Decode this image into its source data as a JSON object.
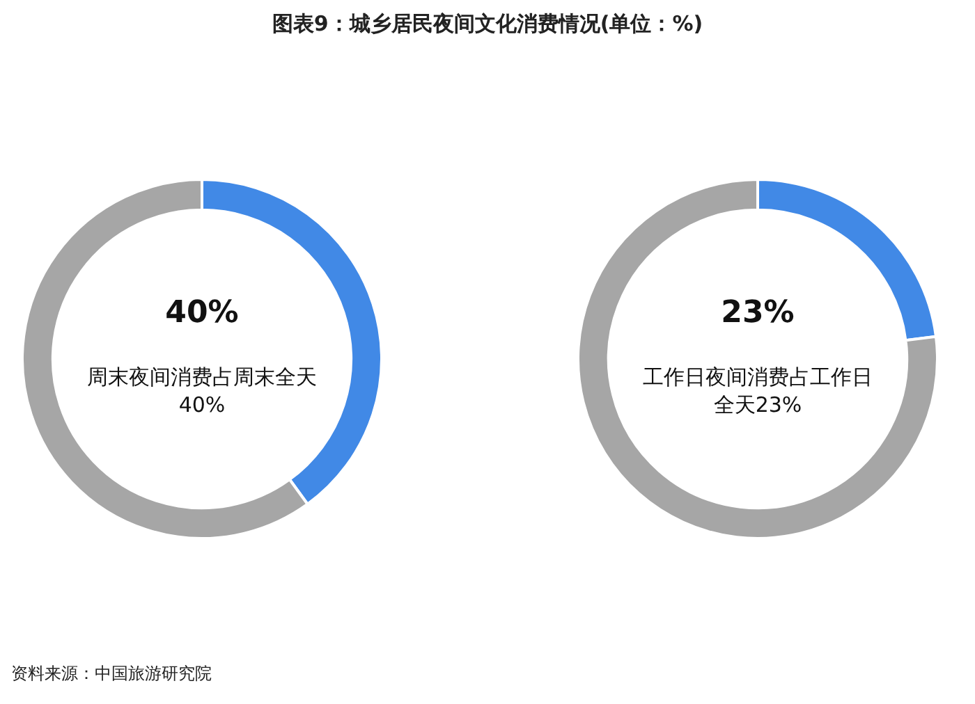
{
  "chart_data": [
    {
      "type": "donut",
      "title": "图表9：城乡居民夜间文化消费情况(单位：%)",
      "categories": [
        null,
        null
      ],
      "values": [
        40,
        60
      ],
      "colors": [
        "#4189e6",
        "#a6a6a6"
      ],
      "value_labels": [
        "40%",
        null
      ],
      "legend": false,
      "annotations": [
        "周末夜间消费占周末全天40%",
        "资料来源：中国旅游研究院"
      ]
    },
    {
      "type": "donut",
      "categories": [
        null,
        null
      ],
      "values": [
        23,
        77
      ],
      "colors": [
        "#4189e6",
        "#a6a6a6"
      ],
      "value_labels": [
        "23%",
        null
      ],
      "legend": false,
      "annotations": [
        "工作日夜间消费占工作日全天23%"
      ]
    }
  ]
}
